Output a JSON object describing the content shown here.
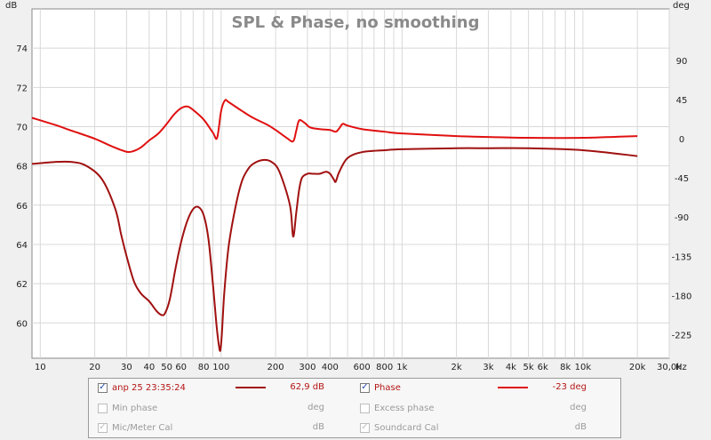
{
  "chart_data": {
    "type": "line",
    "title": "SPL & Phase, no smoothing",
    "left_unit": "dB",
    "right_unit": "deg",
    "x_unit": "Hz",
    "x_scale": "log",
    "xlim": [
      9,
      30000
    ],
    "ylim_left": [
      58.2,
      76
    ],
    "ylim_right": [
      -252,
      149
    ],
    "grid": true,
    "x_ticks": [
      {
        "v": 10,
        "label": "10"
      },
      {
        "v": 20,
        "label": "20"
      },
      {
        "v": 30,
        "label": "30"
      },
      {
        "v": 40,
        "label": "40"
      },
      {
        "v": 50,
        "label": "50"
      },
      {
        "v": 60,
        "label": "60"
      },
      {
        "v": 80,
        "label": "80"
      },
      {
        "v": 100,
        "label": "100"
      },
      {
        "v": 200,
        "label": "200"
      },
      {
        "v": 300,
        "label": "300"
      },
      {
        "v": 400,
        "label": "400"
      },
      {
        "v": 600,
        "label": "600"
      },
      {
        "v": 800,
        "label": "800"
      },
      {
        "v": 1000,
        "label": "1k"
      },
      {
        "v": 2000,
        "label": "2k"
      },
      {
        "v": 3000,
        "label": "3k"
      },
      {
        "v": 4000,
        "label": "4k"
      },
      {
        "v": 5000,
        "label": "5k"
      },
      {
        "v": 6000,
        "label": "6k"
      },
      {
        "v": 8000,
        "label": "8k"
      },
      {
        "v": 10000,
        "label": "10k"
      },
      {
        "v": 20000,
        "label": "20k"
      },
      {
        "v": 30000,
        "label": "30,0k"
      }
    ],
    "left_ticks": [
      {
        "v": 60,
        "label": "60"
      },
      {
        "v": 62,
        "label": "62"
      },
      {
        "v": 64,
        "label": "64"
      },
      {
        "v": 66,
        "label": "66"
      },
      {
        "v": 68,
        "label": "68"
      },
      {
        "v": 70,
        "label": "70"
      },
      {
        "v": 72,
        "label": "72"
      },
      {
        "v": 74,
        "label": "74"
      }
    ],
    "right_ticks": [
      {
        "v": 90,
        "label": "90"
      },
      {
        "v": 45,
        "label": "45"
      },
      {
        "v": 0,
        "label": "0"
      },
      {
        "v": -45,
        "label": "-45"
      },
      {
        "v": -90,
        "label": "-90"
      },
      {
        "v": -135,
        "label": "-135"
      },
      {
        "v": -180,
        "label": "-180"
      },
      {
        "v": -225,
        "label": "-225"
      }
    ],
    "series": [
      {
        "name": "anp 25 23:35:24",
        "axis": "left",
        "color": "#a01010",
        "x": [
          9,
          12,
          15,
          18,
          22,
          26,
          28,
          30,
          33,
          36,
          40,
          44,
          47,
          49,
          52,
          56,
          60,
          65,
          70,
          75,
          80,
          85,
          90,
          94,
          97,
          99,
          101,
          104,
          110,
          120,
          130,
          140,
          150,
          170,
          190,
          210,
          240,
          250,
          260,
          270,
          280,
          300,
          320,
          350,
          380,
          400,
          420,
          430,
          450,
          500,
          600,
          800,
          1000,
          2000,
          3000,
          5000,
          10000,
          20000
        ],
        "y": [
          68.1,
          68.2,
          68.2,
          68.0,
          67.3,
          65.8,
          64.5,
          63.4,
          62.1,
          61.5,
          61.1,
          60.6,
          60.4,
          60.5,
          61.2,
          62.8,
          64.1,
          65.2,
          65.8,
          65.9,
          65.5,
          64.3,
          62.0,
          60.0,
          58.9,
          58.6,
          59.5,
          61.5,
          63.9,
          65.9,
          67.2,
          67.8,
          68.1,
          68.3,
          68.2,
          67.7,
          66.0,
          64.4,
          65.6,
          66.8,
          67.4,
          67.6,
          67.6,
          67.6,
          67.7,
          67.6,
          67.3,
          67.2,
          67.7,
          68.4,
          68.7,
          68.8,
          68.85,
          68.9,
          68.9,
          68.9,
          68.8,
          68.5
        ]
      },
      {
        "name": "Phase",
        "axis": "right",
        "color": "#e01010",
        "x": [
          9,
          12,
          15,
          20,
          25,
          30,
          33,
          36,
          40,
          45,
          50,
          55,
          60,
          65,
          70,
          80,
          90,
          95,
          100,
          105,
          110,
          130,
          150,
          180,
          200,
          230,
          250,
          260,
          270,
          290,
          310,
          350,
          400,
          430,
          450,
          470,
          500,
          600,
          800,
          1000,
          2000,
          3000,
          5000,
          10000,
          20000
        ],
        "y": [
          24,
          16,
          9,
          0,
          -9,
          -15,
          -14,
          -10,
          -2,
          6,
          17,
          28,
          35,
          37,
          33,
          22,
          7,
          1,
          32,
          44,
          42,
          32,
          24,
          16,
          10,
          1,
          -3,
          9,
          21,
          18,
          13,
          11,
          10,
          8,
          12,
          17,
          15,
          11,
          8,
          6,
          3,
          2,
          1,
          1,
          3
        ]
      }
    ],
    "legend": {
      "rows": [
        {
          "left": {
            "label": "anp 25 23:35:24",
            "value": "62,9 dB",
            "checked": true,
            "enabled": true,
            "color": "#a01010"
          },
          "right": {
            "label": "Phase",
            "value": "-23 deg",
            "checked": true,
            "enabled": true,
            "color": "#e01010"
          }
        },
        {
          "left": {
            "label": "Min phase",
            "value": "deg",
            "checked": false,
            "enabled": false
          },
          "right": {
            "label": "Excess phase",
            "value": "deg",
            "checked": false,
            "enabled": false
          }
        },
        {
          "left": {
            "label": "Mic/Meter Cal",
            "value": "dB",
            "checked": true,
            "enabled": false
          },
          "right": {
            "label": "Soundcard Cal",
            "value": "dB",
            "checked": true,
            "enabled": false
          }
        }
      ]
    }
  }
}
